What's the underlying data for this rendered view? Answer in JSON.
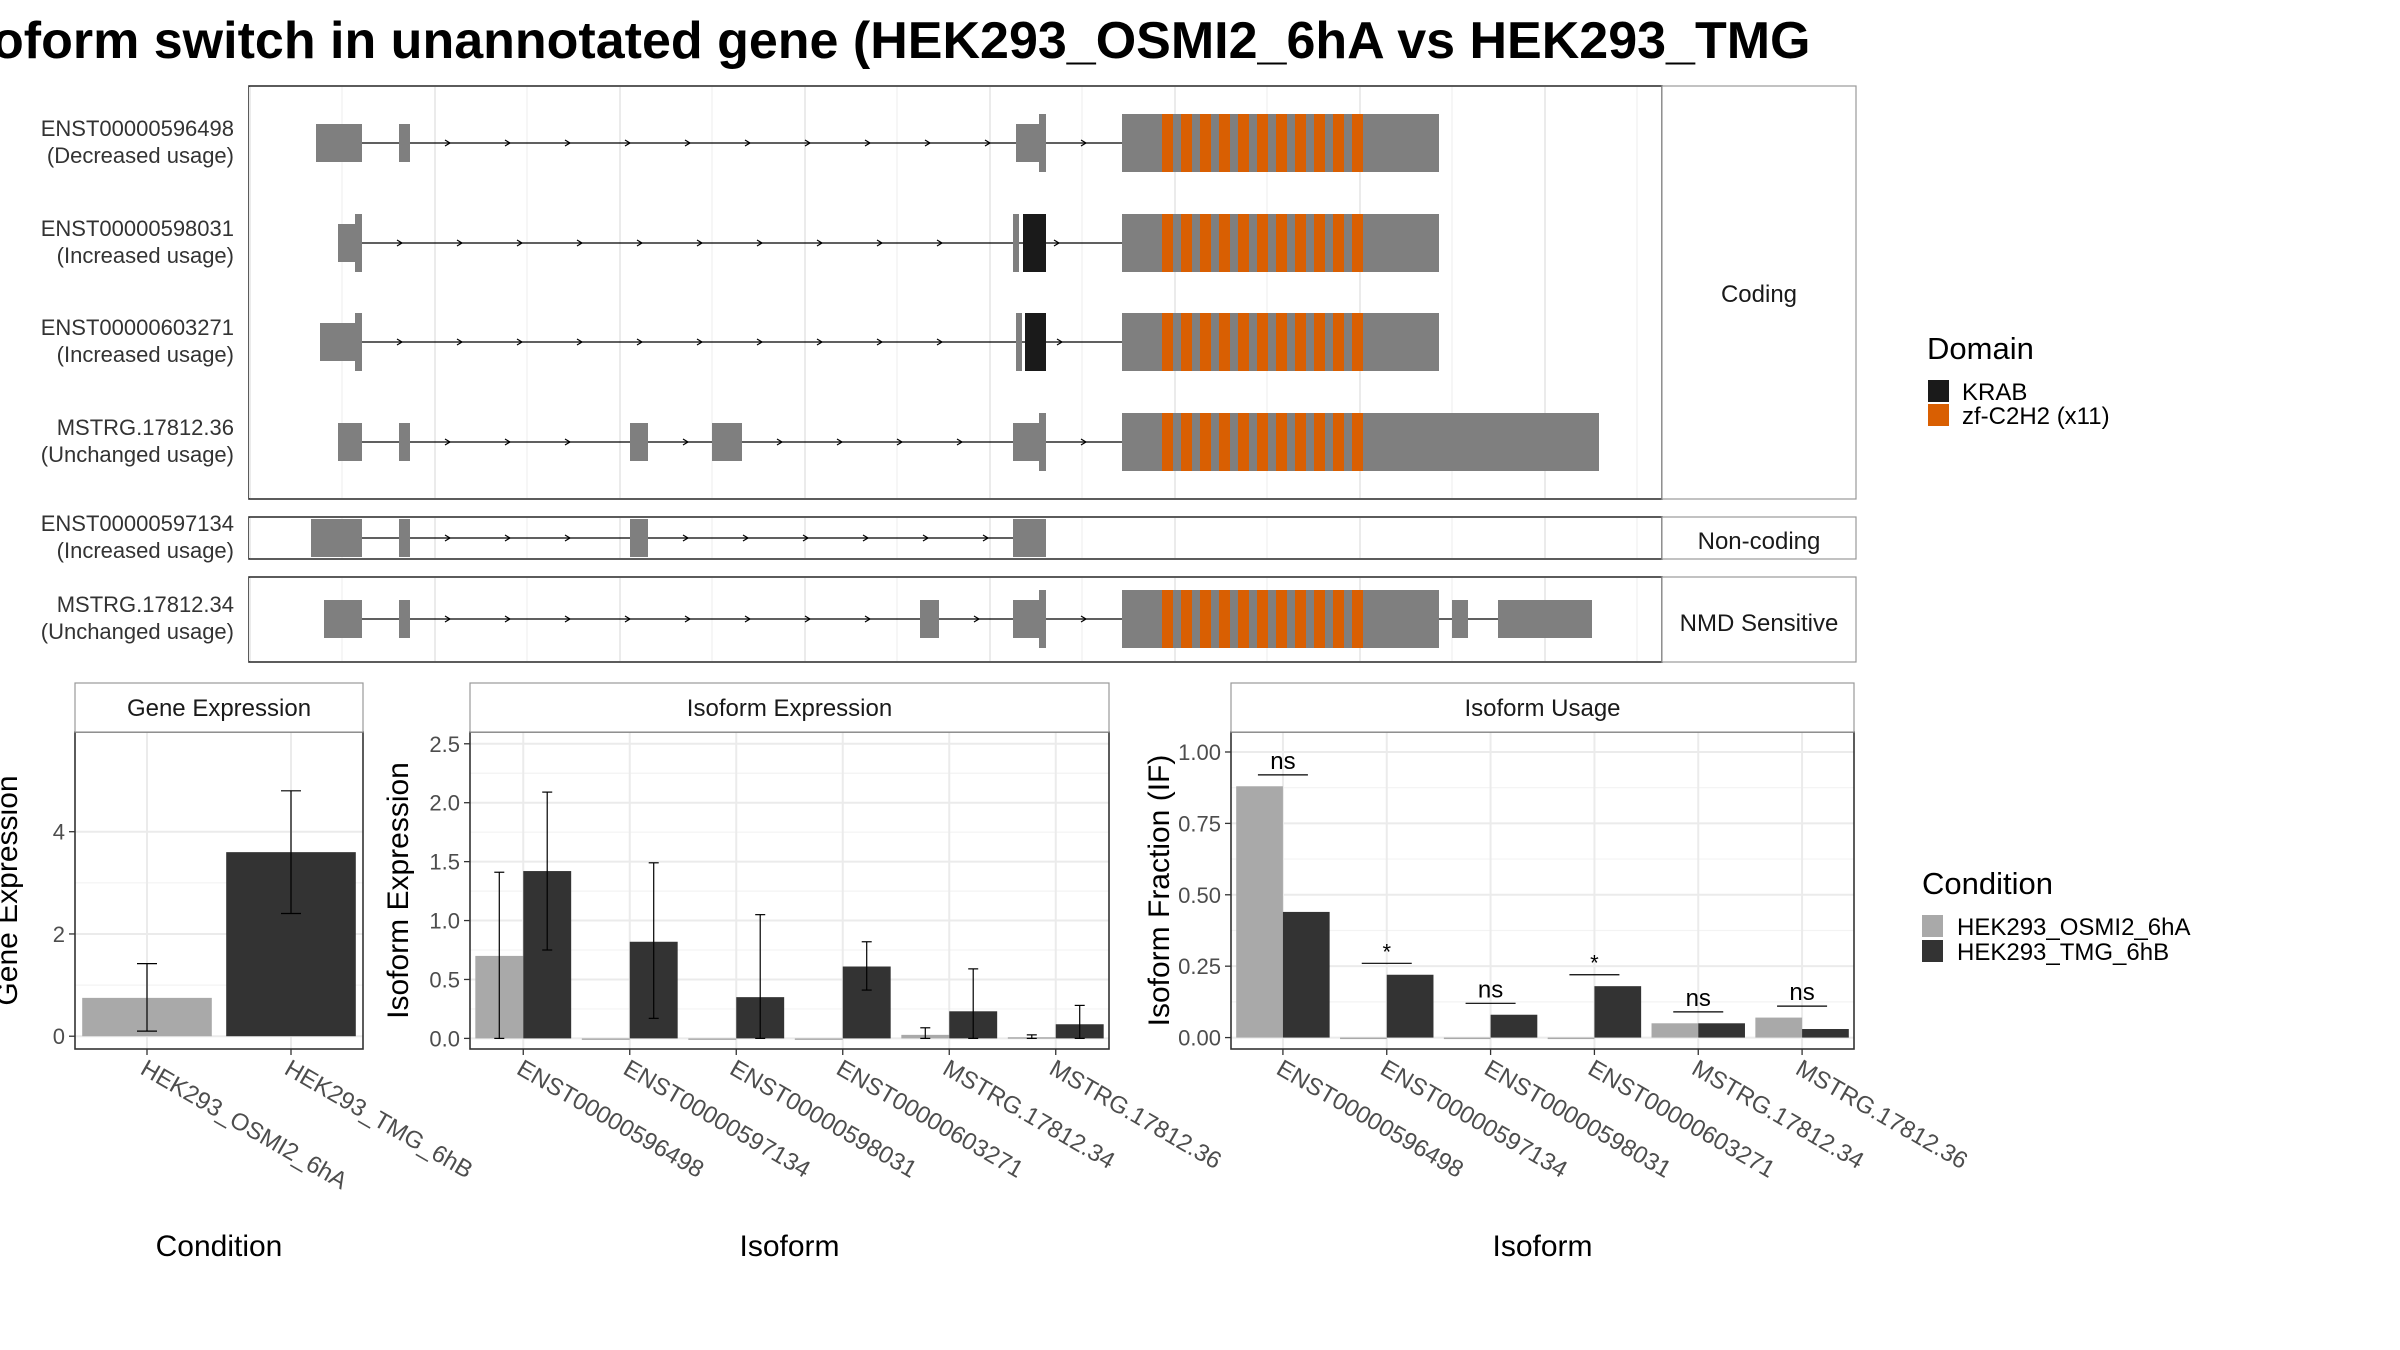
{
  "title": "oform switch in unannotated gene (HEK293_OSMI2_6hA vs HEK293_TMG",
  "colors": {
    "exon": "#7f7f7f",
    "krab": "#1a1a1a",
    "zf": "#d95f02",
    "cond_a": "#a9a9a9",
    "cond_b": "#333333",
    "panel_border": "#333333",
    "strip_border": "#999999",
    "grid": "#ebebeb",
    "grid_minor": "#f3f3f3"
  },
  "structure": {
    "transcripts": [
      {
        "id": "ENST00000596498",
        "usage": "(Decreased usage)",
        "group": "Coding"
      },
      {
        "id": "ENST00000598031",
        "usage": "(Increased usage)",
        "group": "Coding"
      },
      {
        "id": "ENST00000603271",
        "usage": "(Increased usage)",
        "group": "Coding"
      },
      {
        "id": "MSTRG.17812.36",
        "usage": "(Unchanged usage)",
        "group": "Coding"
      },
      {
        "id": "ENST00000597134",
        "usage": "(Increased usage)",
        "group": "Non-coding"
      },
      {
        "id": "MSTRG.17812.34",
        "usage": "(Unchanged usage)",
        "group": "NMD Sensitive"
      }
    ],
    "groups": [
      "Coding",
      "Non-coding",
      "NMD Sensitive"
    ]
  },
  "domain_legend": {
    "title": "Domain",
    "items": [
      {
        "label": "KRAB",
        "color": "#1a1a1a"
      },
      {
        "label": "zf-C2H2 (x11)",
        "color": "#d95f02"
      }
    ]
  },
  "condition_legend": {
    "title": "Condition",
    "items": [
      {
        "label": "HEK293_OSMI2_6hA",
        "color": "#a9a9a9"
      },
      {
        "label": "HEK293_TMG_6hB",
        "color": "#333333"
      }
    ]
  },
  "chart_data": [
    {
      "type": "bar",
      "title": "Gene Expression",
      "xlabel": "Condition",
      "ylabel": "Gene Expression",
      "categories": [
        "HEK293_OSMI2_6hA",
        "HEK293_TMG_6hB"
      ],
      "values": [
        0.75,
        3.6
      ],
      "errors": [
        [
          0.1,
          1.42
        ],
        [
          2.4,
          4.8
        ]
      ],
      "ylim": [
        -0.25,
        5.95
      ],
      "yticks": [
        0,
        2,
        4
      ]
    },
    {
      "type": "bar",
      "title": "Isoform Expression",
      "xlabel": "Isoform",
      "ylabel": "Isoform Expression",
      "categories": [
        "ENST00000596498",
        "ENST00000597134",
        "ENST00000598031",
        "ENST00000603271",
        "MSTRG.17812.34",
        "MSTRG.17812.36"
      ],
      "series": [
        {
          "name": "HEK293_OSMI2_6hA",
          "values": [
            0.7,
            0.0,
            0.0,
            0.0,
            0.03,
            0.01
          ],
          "errors": [
            [
              0.0,
              1.41
            ],
            [
              0.0,
              0.0
            ],
            [
              0.0,
              0.0
            ],
            [
              0.0,
              0.0
            ],
            [
              0.0,
              0.09
            ],
            [
              0.0,
              0.03
            ]
          ]
        },
        {
          "name": "HEK293_TMG_6hB",
          "values": [
            1.42,
            0.82,
            0.35,
            0.61,
            0.23,
            0.12
          ],
          "errors": [
            [
              0.75,
              2.09
            ],
            [
              0.17,
              1.49
            ],
            [
              0.0,
              1.05
            ],
            [
              0.41,
              0.82
            ],
            [
              0.0,
              0.59
            ],
            [
              0.0,
              0.28
            ]
          ]
        }
      ],
      "ylim": [
        -0.09,
        2.6
      ],
      "yticks": [
        "0.0",
        "0.5",
        "1.0",
        "1.5",
        "2.0",
        "2.5"
      ]
    },
    {
      "type": "bar",
      "title": "Isoform Usage",
      "xlabel": "Isoform",
      "ylabel": "Isoform Fraction (IF)",
      "categories": [
        "ENST00000596498",
        "ENST00000597134",
        "ENST00000598031",
        "ENST00000603271",
        "MSTRG.17812.34",
        "MSTRG.17812.36"
      ],
      "series": [
        {
          "name": "HEK293_OSMI2_6hA",
          "values": [
            0.88,
            0.0,
            0.0,
            0.0,
            0.05,
            0.07
          ]
        },
        {
          "name": "HEK293_TMG_6hB",
          "values": [
            0.44,
            0.22,
            0.08,
            0.18,
            0.05,
            0.03
          ]
        }
      ],
      "significance": [
        "ns",
        "*",
        "ns",
        "*",
        "ns",
        "ns"
      ],
      "ylim": [
        -0.04,
        1.07
      ],
      "yticks": [
        "0.00",
        "0.25",
        "0.50",
        "0.75",
        "1.00"
      ]
    }
  ]
}
